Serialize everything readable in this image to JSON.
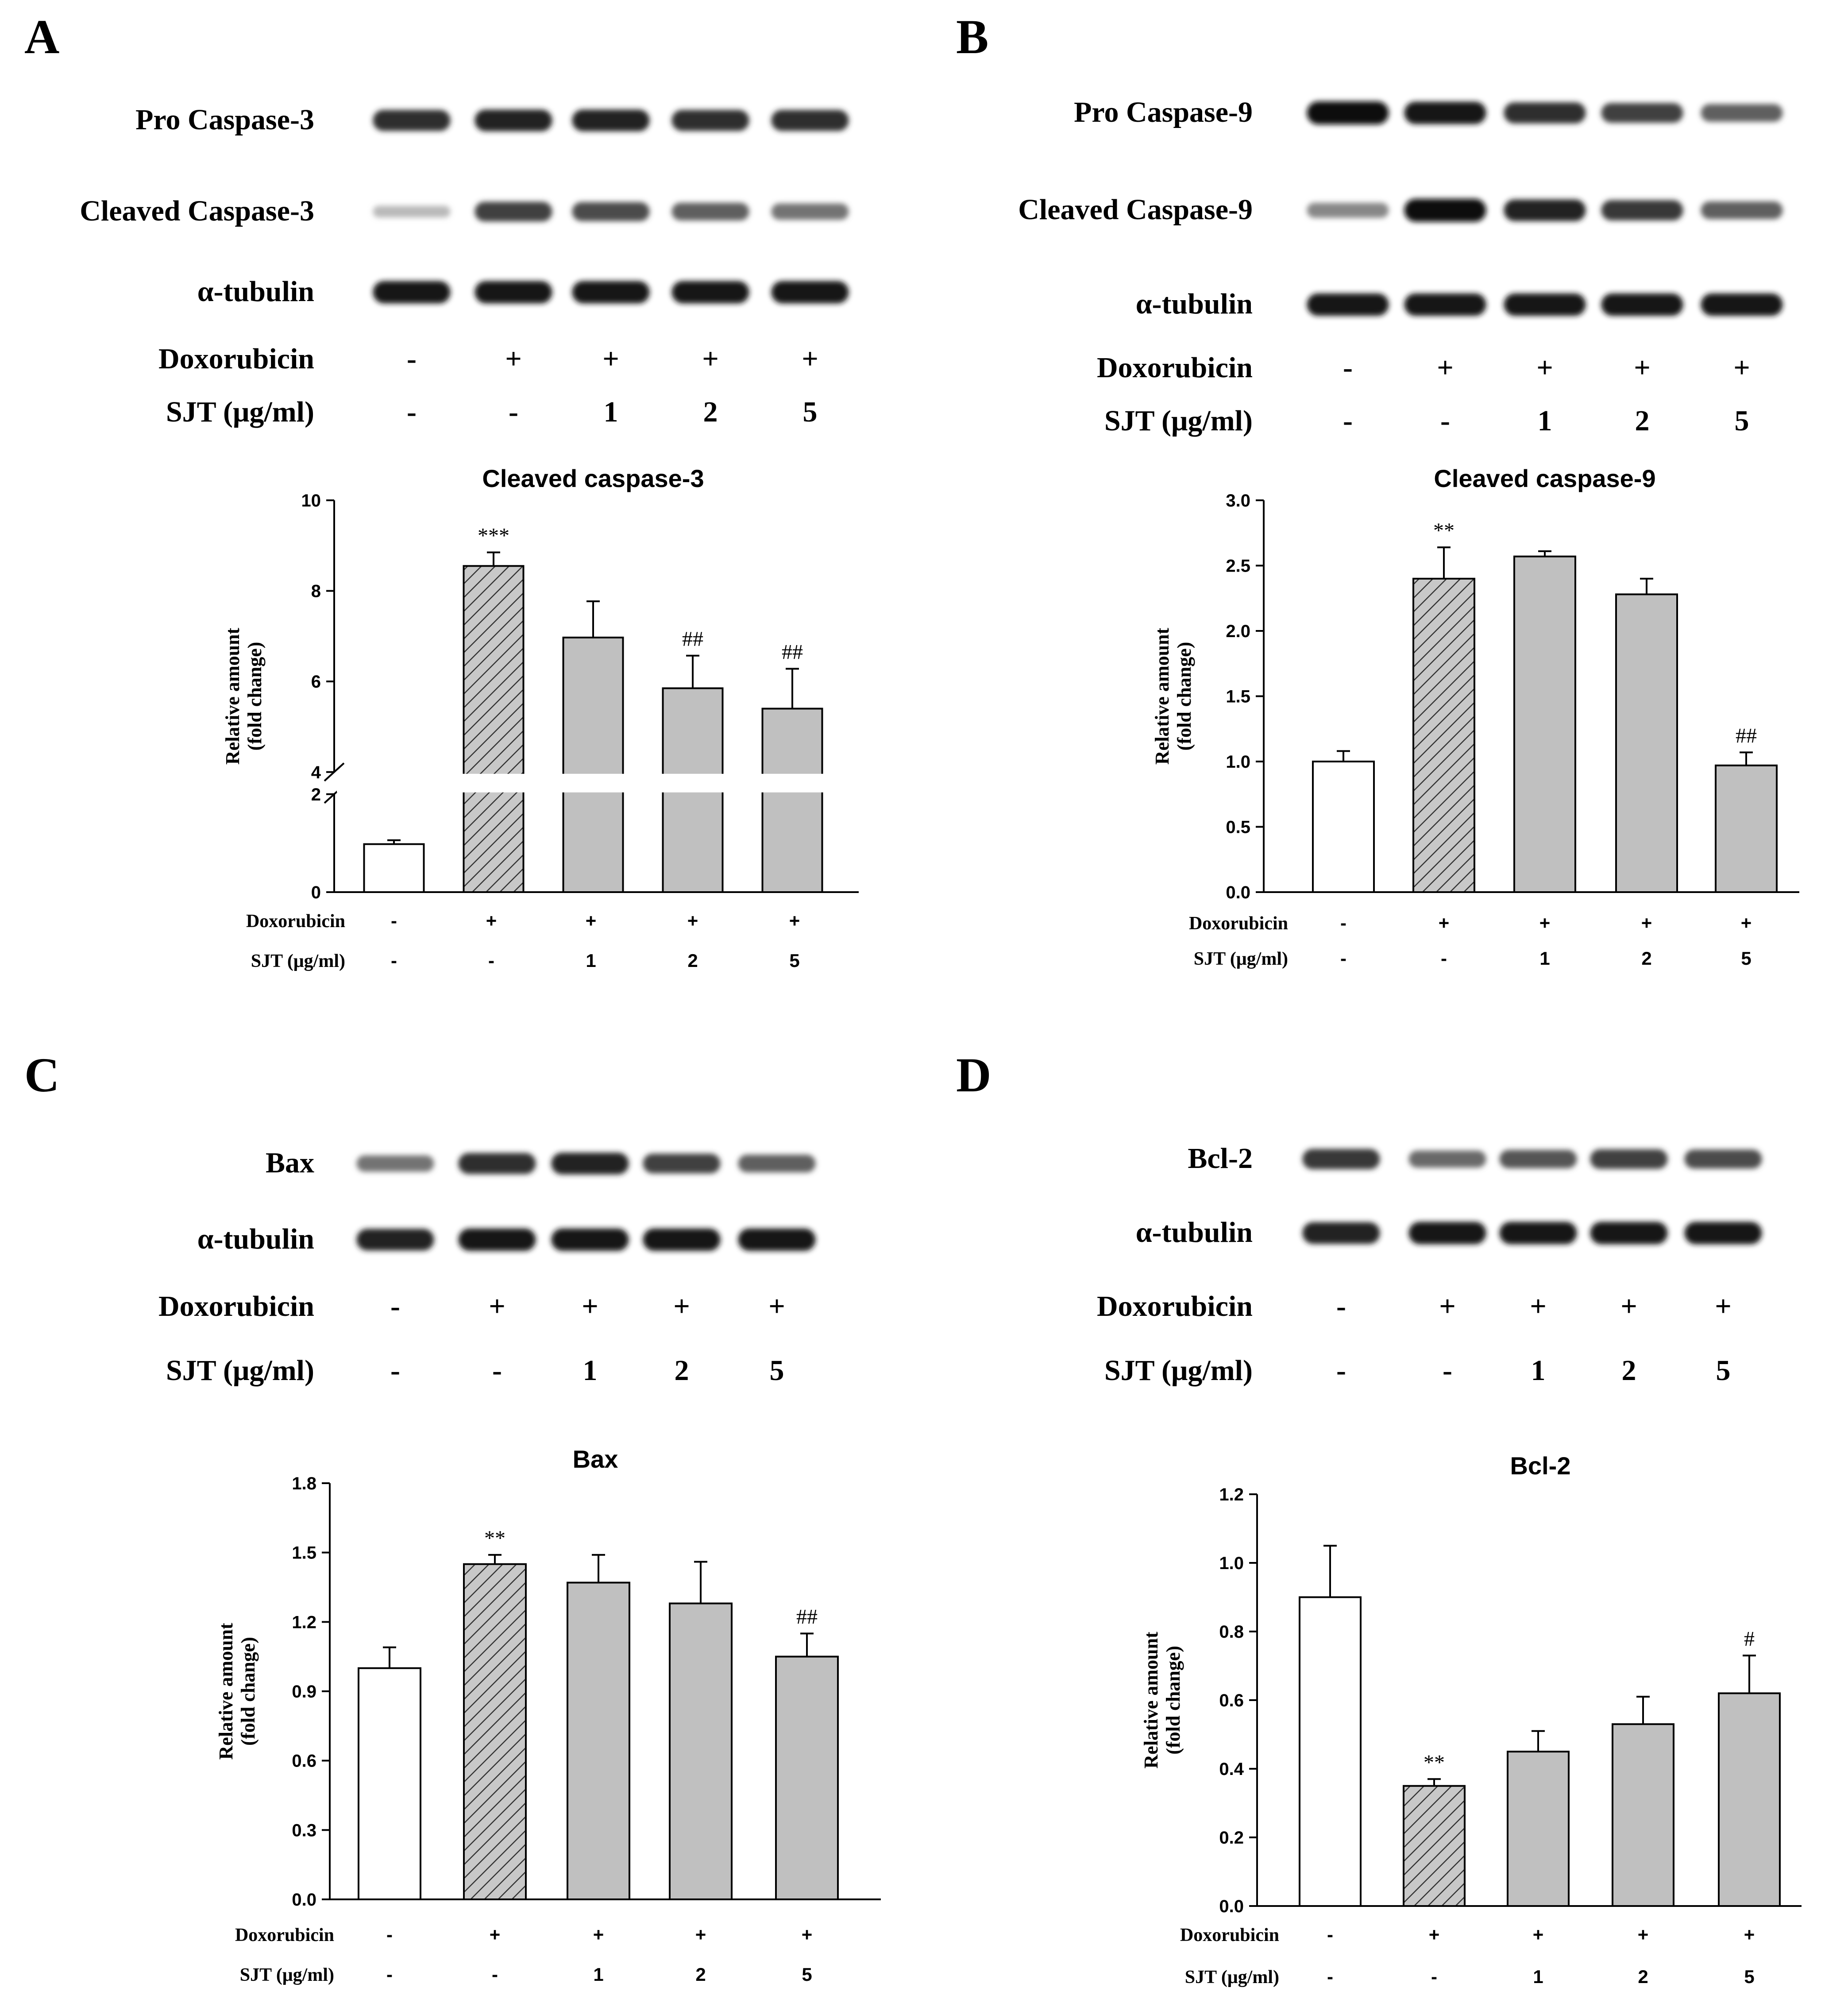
{
  "panels": [
    "A",
    "B",
    "C",
    "D"
  ],
  "treatments": {
    "row1_label": "Doxorubicin",
    "row2_label": "SJT (μg/ml)",
    "row1": [
      "-",
      "+",
      "+",
      "+",
      "+"
    ],
    "row2": [
      "-",
      "-",
      "1",
      "2",
      "5"
    ]
  },
  "blots": [
    {
      "panel": "A",
      "rows": [
        {
          "label": "Pro Caspase-3",
          "intensity": [
            0.85,
            0.9,
            0.9,
            0.85,
            0.85
          ]
        },
        {
          "label": "Cleaved Caspase-3",
          "intensity": [
            0.15,
            0.75,
            0.7,
            0.6,
            0.5
          ]
        },
        {
          "label": "α-tubulin",
          "intensity": [
            0.95,
            0.95,
            0.95,
            0.95,
            0.95
          ]
        }
      ]
    },
    {
      "panel": "B",
      "rows": [
        {
          "label": "Pro Caspase-9",
          "intensity": [
            1.0,
            0.95,
            0.85,
            0.75,
            0.6
          ]
        },
        {
          "label": "Cleaved Caspase-9",
          "intensity": [
            0.4,
            1.0,
            0.9,
            0.8,
            0.6
          ]
        },
        {
          "label": "α-tubulin",
          "intensity": [
            0.95,
            0.95,
            0.95,
            0.95,
            0.95
          ]
        }
      ]
    },
    {
      "panel": "C",
      "rows": [
        {
          "label": "Bax",
          "intensity": [
            0.5,
            0.85,
            0.9,
            0.75,
            0.6
          ]
        },
        {
          "label": "α-tubulin",
          "intensity": [
            0.9,
            0.95,
            0.95,
            0.95,
            0.95
          ]
        }
      ]
    },
    {
      "panel": "D",
      "rows": [
        {
          "label": "Bcl-2",
          "intensity": [
            0.8,
            0.55,
            0.65,
            0.75,
            0.7
          ]
        },
        {
          "label": "α-tubulin",
          "intensity": [
            0.9,
            0.95,
            0.95,
            0.95,
            0.95
          ]
        }
      ]
    }
  ],
  "chart_data": [
    {
      "type": "bar",
      "panel": "A",
      "title": "Cleaved caspase-3",
      "ylabel": "Relative amount\n(fold change)",
      "ylim": [
        0,
        10
      ],
      "axis_break": [
        2,
        4
      ],
      "yticks": [
        0,
        2,
        4,
        6,
        8,
        10
      ],
      "categories": [
        "Control",
        "Doxorubicin",
        "Doxorubicin + SJT 1",
        "Doxorubicin + SJT 2",
        "Doxorubicin + SJT 5"
      ],
      "values": [
        0.98,
        8.55,
        6.97,
        5.85,
        5.4
      ],
      "errors": [
        0.08,
        0.3,
        0.8,
        0.72,
        0.88
      ],
      "significance": [
        "",
        "***",
        "",
        "##",
        "##"
      ],
      "bar_styles": [
        "white",
        "hatched",
        "gray",
        "gray",
        "gray"
      ]
    },
    {
      "type": "bar",
      "panel": "B",
      "title": "Cleaved caspase-9",
      "ylabel": "Relative amount\n(fold change)",
      "ylim": [
        0,
        3.0
      ],
      "yticks": [
        "0.0",
        "0.5",
        "1.0",
        "1.5",
        "2.0",
        "2.5",
        "3.0"
      ],
      "categories": [
        "Control",
        "Doxorubicin",
        "Doxorubicin + SJT 1",
        "Doxorubicin + SJT 2",
        "Doxorubicin + SJT 5"
      ],
      "values": [
        1.0,
        2.4,
        2.57,
        2.28,
        0.97
      ],
      "errors": [
        0.08,
        0.24,
        0.04,
        0.12,
        0.1
      ],
      "significance": [
        "",
        "**",
        "",
        "",
        "##"
      ],
      "bar_styles": [
        "white",
        "hatched",
        "gray",
        "gray",
        "gray"
      ]
    },
    {
      "type": "bar",
      "panel": "C",
      "title": "Bax",
      "ylabel": "Relative amount\n(fold change)",
      "ylim": [
        0,
        1.8
      ],
      "yticks": [
        "0.0",
        "0.3",
        "0.6",
        "0.9",
        "1.2",
        "1.5",
        "1.8"
      ],
      "categories": [
        "Control",
        "Doxorubicin",
        "Doxorubicin + SJT 1",
        "Doxorubicin + SJT 2",
        "Doxorubicin + SJT 5"
      ],
      "values": [
        1.0,
        1.45,
        1.37,
        1.28,
        1.05
      ],
      "errors": [
        0.09,
        0.04,
        0.12,
        0.18,
        0.1
      ],
      "significance": [
        "",
        "**",
        "",
        "",
        "##"
      ],
      "bar_styles": [
        "white",
        "hatched",
        "gray",
        "gray",
        "gray"
      ]
    },
    {
      "type": "bar",
      "panel": "D",
      "title": "Bcl-2",
      "ylabel": "Relative amount\n(fold change)",
      "ylim": [
        0,
        1.2
      ],
      "yticks": [
        "0.0",
        "0.2",
        "0.4",
        "0.6",
        "0.8",
        "1.0",
        "1.2"
      ],
      "categories": [
        "Control",
        "Doxorubicin",
        "Doxorubicin + SJT 1",
        "Doxorubicin + SJT 2",
        "Doxorubicin + SJT 5"
      ],
      "values": [
        0.9,
        0.35,
        0.45,
        0.53,
        0.62
      ],
      "errors": [
        0.15,
        0.02,
        0.06,
        0.08,
        0.11
      ],
      "significance": [
        "",
        "**",
        "",
        "",
        "#"
      ],
      "bar_styles": [
        "white",
        "hatched",
        "gray",
        "gray",
        "gray"
      ]
    }
  ]
}
